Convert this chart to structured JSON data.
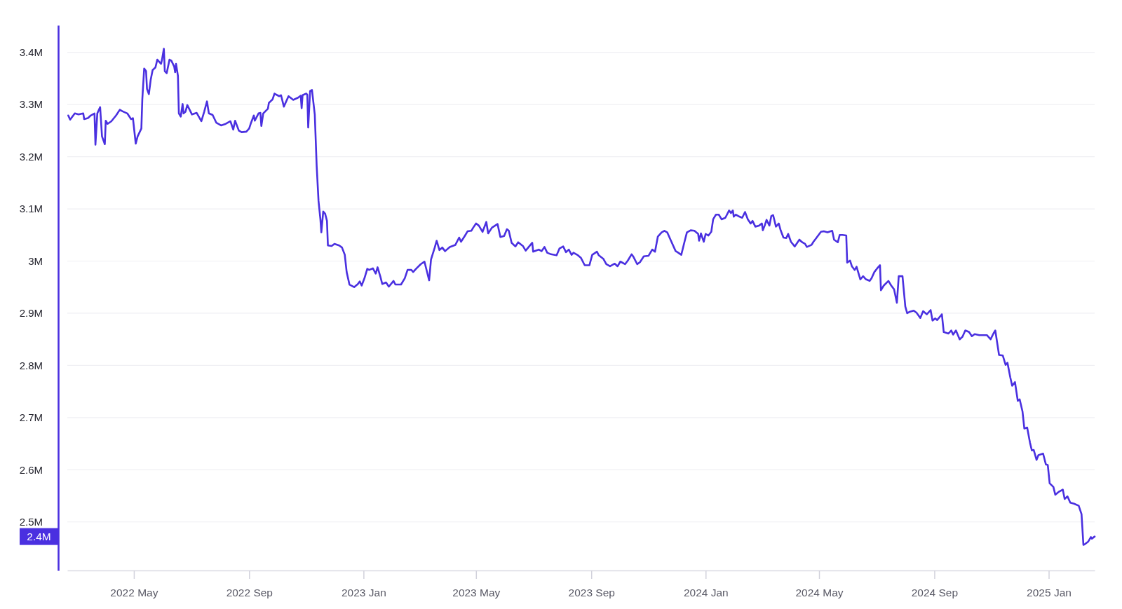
{
  "chart_data": {
    "type": "line",
    "x": [
      "2022-02-20",
      "2022-02-22",
      "2022-02-27",
      "2022-03-03",
      "2022-03-08",
      "2022-03-09",
      "2022-03-13",
      "2022-03-16",
      "2022-03-20",
      "2022-03-21",
      "2022-03-23",
      "2022-03-26",
      "2022-03-28",
      "2022-03-31",
      "2022-04-01",
      "2022-04-03",
      "2022-04-07",
      "2022-04-12",
      "2022-04-16",
      "2022-04-19",
      "2022-04-24",
      "2022-04-28",
      "2022-04-30",
      "2022-05-03",
      "2022-05-05",
      "2022-05-09",
      "2022-05-10",
      "2022-05-12",
      "2022-05-14",
      "2022-05-15",
      "2022-05-17",
      "2022-05-19",
      "2022-05-21",
      "2022-05-24",
      "2022-05-26",
      "2022-05-30",
      "2022-05-31",
      "2022-06-02",
      "2022-06-03",
      "2022-06-05",
      "2022-06-08",
      "2022-06-10",
      "2022-06-13",
      "2022-06-14",
      "2022-06-15",
      "2022-06-17",
      "2022-06-18",
      "2022-06-20",
      "2022-06-22",
      "2022-06-23",
      "2022-06-25",
      "2022-06-27",
      "2022-07-02",
      "2022-07-07",
      "2022-07-12",
      "2022-07-15",
      "2022-07-18",
      "2022-07-20",
      "2022-07-24",
      "2022-07-28",
      "2022-08-02",
      "2022-08-07",
      "2022-08-12",
      "2022-08-15",
      "2022-08-17",
      "2022-08-21",
      "2022-08-24",
      "2022-08-29",
      "2022-09-01",
      "2022-09-03",
      "2022-09-06",
      "2022-09-07",
      "2022-09-11",
      "2022-09-13",
      "2022-09-14",
      "2022-09-16",
      "2022-09-21",
      "2022-09-22",
      "2022-09-26",
      "2022-09-28",
      "2022-10-03",
      "2022-10-05",
      "2022-10-08",
      "2022-10-13",
      "2022-10-18",
      "2022-10-23",
      "2022-10-26",
      "2022-10-27",
      "2022-10-28",
      "2022-11-01",
      "2022-11-02",
      "2022-11-03",
      "2022-11-05",
      "2022-11-07",
      "2022-11-10",
      "2022-11-12",
      "2022-11-14",
      "2022-11-16",
      "2022-11-17",
      "2022-11-19",
      "2022-11-21",
      "2022-11-23",
      "2022-11-24",
      "2022-11-28",
      "2022-12-01",
      "2022-12-06",
      "2022-12-09",
      "2022-12-12",
      "2022-12-14",
      "2022-12-17",
      "2022-12-22",
      "2022-12-26",
      "2022-12-28",
      "2022-12-30",
      "2023-01-02",
      "2023-01-05",
      "2023-01-07",
      "2023-01-11",
      "2023-01-14",
      "2023-01-16",
      "2023-01-19",
      "2023-01-21",
      "2023-01-25",
      "2023-01-28",
      "2023-02-02",
      "2023-02-04",
      "2023-02-10",
      "2023-02-14",
      "2023-02-17",
      "2023-02-21",
      "2023-02-23",
      "2023-02-26",
      "2023-03-03",
      "2023-03-07",
      "2023-03-12",
      "2023-03-14",
      "2023-03-18",
      "2023-03-20",
      "2023-03-23",
      "2023-03-26",
      "2023-03-29",
      "2023-04-03",
      "2023-04-09",
      "2023-04-13",
      "2023-04-15",
      "2023-04-19",
      "2023-04-22",
      "2023-04-26",
      "2023-04-28",
      "2023-05-01",
      "2023-05-04",
      "2023-05-08",
      "2023-05-12",
      "2023-05-14",
      "2023-05-18",
      "2023-05-24",
      "2023-05-27",
      "2023-05-31",
      "2023-06-03",
      "2023-06-05",
      "2023-06-08",
      "2023-06-12",
      "2023-06-15",
      "2023-06-20",
      "2023-06-23",
      "2023-06-30",
      "2023-07-01",
      "2023-07-07",
      "2023-07-10",
      "2023-07-13",
      "2023-07-16",
      "2023-07-20",
      "2023-07-26",
      "2023-07-29",
      "2023-08-02",
      "2023-08-05",
      "2023-08-08",
      "2023-08-11",
      "2023-08-13",
      "2023-08-17",
      "2023-08-21",
      "2023-08-25",
      "2023-08-30",
      "2023-09-02",
      "2023-09-07",
      "2023-09-09",
      "2023-09-14",
      "2023-09-17",
      "2023-09-21",
      "2023-09-26",
      "2023-09-29",
      "2023-10-02",
      "2023-10-07",
      "2023-10-10",
      "2023-10-14",
      "2023-10-16",
      "2023-10-20",
      "2023-10-23",
      "2023-10-27",
      "2023-11-01",
      "2023-11-05",
      "2023-11-08",
      "2023-11-11",
      "2023-11-15",
      "2023-11-18",
      "2023-11-21",
      "2023-11-25",
      "2023-11-30",
      "2023-12-02",
      "2023-12-06",
      "2023-12-10",
      "2023-12-12",
      "2023-12-16",
      "2023-12-20",
      "2023-12-24",
      "2023-12-25",
      "2023-12-27",
      "2023-12-30",
      "2024-01-01",
      "2024-01-04",
      "2024-01-07",
      "2024-01-09",
      "2024-01-12",
      "2024-01-15",
      "2024-01-18",
      "2024-01-22",
      "2024-01-26",
      "2024-01-28",
      "2024-01-30",
      "2024-01-31",
      "2024-02-02",
      "2024-02-05",
      "2024-02-09",
      "2024-02-12",
      "2024-02-15",
      "2024-02-18",
      "2024-02-20",
      "2024-02-23",
      "2024-02-27",
      "2024-03-01",
      "2024-03-02",
      "2024-03-04",
      "2024-03-06",
      "2024-03-09",
      "2024-03-11",
      "2024-03-13",
      "2024-03-16",
      "2024-03-19",
      "2024-03-21",
      "2024-03-24",
      "2024-03-27",
      "2024-03-29",
      "2024-04-01",
      "2024-04-05",
      "2024-04-10",
      "2024-04-13",
      "2024-04-16",
      "2024-04-18",
      "2024-04-23",
      "2024-04-25",
      "2024-04-28",
      "2024-05-03",
      "2024-05-06",
      "2024-05-10",
      "2024-05-15",
      "2024-05-17",
      "2024-05-21",
      "2024-05-23",
      "2024-05-26",
      "2024-05-30",
      "2024-05-31",
      "2024-06-03",
      "2024-06-05",
      "2024-06-08",
      "2024-06-10",
      "2024-06-14",
      "2024-06-17",
      "2024-06-20",
      "2024-06-24",
      "2024-06-26",
      "2024-06-29",
      "2024-07-02",
      "2024-07-05",
      "2024-07-06",
      "2024-07-09",
      "2024-07-14",
      "2024-07-17",
      "2024-07-20",
      "2024-07-23",
      "2024-07-25",
      "2024-07-29",
      "2024-08-01",
      "2024-08-03",
      "2024-08-06",
      "2024-08-10",
      "2024-08-13",
      "2024-08-17",
      "2024-08-20",
      "2024-08-24",
      "2024-08-28",
      "2024-08-30",
      "2024-09-02",
      "2024-09-04",
      "2024-09-09",
      "2024-09-11",
      "2024-09-16",
      "2024-09-19",
      "2024-09-21",
      "2024-09-24",
      "2024-09-28",
      "2024-10-01",
      "2024-10-04",
      "2024-10-08",
      "2024-10-11",
      "2024-10-14",
      "2024-10-19",
      "2024-10-27",
      "2024-10-31",
      "2024-11-03",
      "2024-11-05",
      "2024-11-09",
      "2024-11-13",
      "2024-11-16",
      "2024-11-18",
      "2024-11-21",
      "2024-11-23",
      "2024-11-26",
      "2024-11-29",
      "2024-12-01",
      "2024-12-04",
      "2024-12-06",
      "2024-12-09",
      "2024-12-12",
      "2024-12-14",
      "2024-12-16",
      "2024-12-19",
      "2024-12-21",
      "2024-12-26",
      "2024-12-29",
      "2024-12-31",
      "2025-01-02",
      "2025-01-06",
      "2025-01-08",
      "2025-01-12",
      "2025-01-16",
      "2025-01-18",
      "2025-01-21",
      "2025-01-24",
      "2025-01-28",
      "2025-02-02",
      "2025-02-05",
      "2025-02-07",
      "2025-02-09",
      "2025-02-12",
      "2025-02-15",
      "2025-02-16",
      "2025-02-19"
    ],
    "series": [
      {
        "color": "#4a30e0",
        "values": [
          3279000,
          3271000,
          3283000,
          3281000,
          3283000,
          3272000,
          3274000,
          3279000,
          3283000,
          3223000,
          3283000,
          3295000,
          3239000,
          3224000,
          3269000,
          3263000,
          3268000,
          3279000,
          3290000,
          3287000,
          3283000,
          3272000,
          3274000,
          3225000,
          3239000,
          3254000,
          3310000,
          3369000,
          3364000,
          3330000,
          3320000,
          3348000,
          3366000,
          3371000,
          3386000,
          3378000,
          3386000,
          3407000,
          3364000,
          3360000,
          3386000,
          3384000,
          3373000,
          3362000,
          3378000,
          3355000,
          3283000,
          3277000,
          3301000,
          3283000,
          3286000,
          3299000,
          3281000,
          3284000,
          3268000,
          3286000,
          3306000,
          3283000,
          3280000,
          3265000,
          3260000,
          3263000,
          3268000,
          3252000,
          3269000,
          3250000,
          3247000,
          3248000,
          3254000,
          3265000,
          3279000,
          3269000,
          3283000,
          3284000,
          3259000,
          3283000,
          3292000,
          3303000,
          3310000,
          3321000,
          3316000,
          3318000,
          3296000,
          3316000,
          3309000,
          3313000,
          3317000,
          3293000,
          3318000,
          3321000,
          3319000,
          3256000,
          3326000,
          3328000,
          3281000,
          3183000,
          3115000,
          3080000,
          3055000,
          3095000,
          3091000,
          3077000,
          3030000,
          3029000,
          3033000,
          3030000,
          3026000,
          3012000,
          2979000,
          2955000,
          2950000,
          2956000,
          2961000,
          2953000,
          2967000,
          2985000,
          2983000,
          2986000,
          2976000,
          2988000,
          2970000,
          2956000,
          2959000,
          2951000,
          2962000,
          2955000,
          2955000,
          2967000,
          2983000,
          2983000,
          2979000,
          2985000,
          2994000,
          2999000,
          2963000,
          3003000,
          3026000,
          3039000,
          3021000,
          3026000,
          3019000,
          3027000,
          3031000,
          3045000,
          3037000,
          3048000,
          3057000,
          3058000,
          3064000,
          3072000,
          3068000,
          3056000,
          3075000,
          3053000,
          3064000,
          3071000,
          3046000,
          3048000,
          3061000,
          3058000,
          3035000,
          3028000,
          3036000,
          3029000,
          3020000,
          3035000,
          3018000,
          3022000,
          3019000,
          3027000,
          3016000,
          3013000,
          3011000,
          3024000,
          3028000,
          3017000,
          3022000,
          3012000,
          3016000,
          3012000,
          3006000,
          2992000,
          2992000,
          3012000,
          3018000,
          3011000,
          3004000,
          2994000,
          2990000,
          2995000,
          2990000,
          2999000,
          2994000,
          3001000,
          3013000,
          3008000,
          2994000,
          2998000,
          3009000,
          3010000,
          3022000,
          3018000,
          3047000,
          3055000,
          3058000,
          3055000,
          3039000,
          3019000,
          3017000,
          3012000,
          3041000,
          3055000,
          3059000,
          3058000,
          3052000,
          3039000,
          3053000,
          3037000,
          3052000,
          3049000,
          3056000,
          3080000,
          3089000,
          3089000,
          3080000,
          3083000,
          3097000,
          3092000,
          3097000,
          3085000,
          3089000,
          3086000,
          3083000,
          3094000,
          3080000,
          3072000,
          3077000,
          3066000,
          3068000,
          3072000,
          3059000,
          3068000,
          3079000,
          3068000,
          3086000,
          3088000,
          3066000,
          3072000,
          3059000,
          3045000,
          3044000,
          3052000,
          3037000,
          3028000,
          3041000,
          3036000,
          3033000,
          3027000,
          3031000,
          3037000,
          3044000,
          3056000,
          3057000,
          3055000,
          3058000,
          3041000,
          3036000,
          3050000,
          3050000,
          3049000,
          2997000,
          3001000,
          2990000,
          2983000,
          2989000,
          2965000,
          2971000,
          2965000,
          2962000,
          2967000,
          2979000,
          2986000,
          2992000,
          2944000,
          2953000,
          2962000,
          2953000,
          2946000,
          2920000,
          2971000,
          2971000,
          2913000,
          2900000,
          2903000,
          2905000,
          2901000,
          2891000,
          2904000,
          2898000,
          2906000,
          2886000,
          2890000,
          2887000,
          2898000,
          2864000,
          2861000,
          2867000,
          2859000,
          2867000,
          2850000,
          2855000,
          2867000,
          2864000,
          2856000,
          2860000,
          2858000,
          2858000,
          2850000,
          2861000,
          2867000,
          2820000,
          2819000,
          2801000,
          2805000,
          2777000,
          2761000,
          2768000,
          2732000,
          2735000,
          2712000,
          2679000,
          2681000,
          2652000,
          2637000,
          2638000,
          2619000,
          2628000,
          2631000,
          2610000,
          2609000,
          2574000,
          2567000,
          2552000,
          2558000,
          2562000,
          2544000,
          2549000,
          2537000,
          2535000,
          2531000,
          2515000,
          2456000,
          2458000,
          2462000,
          2471000,
          2468000,
          2472000
        ]
      }
    ],
    "xlim": [
      "2022-02-19",
      "2025-02-19"
    ],
    "xticks": [
      {
        "value": "2022-05-01",
        "label": "2022 May"
      },
      {
        "value": "2022-09-01",
        "label": "2022 Sep"
      },
      {
        "value": "2023-01-01",
        "label": "2023 Jan"
      },
      {
        "value": "2023-05-01",
        "label": "2023 May"
      },
      {
        "value": "2023-09-01",
        "label": "2023 Sep"
      },
      {
        "value": "2024-01-01",
        "label": "2024 Jan"
      },
      {
        "value": "2024-05-01",
        "label": "2024 May"
      },
      {
        "value": "2024-09-01",
        "label": "2024 Sep"
      },
      {
        "value": "2025-01-01",
        "label": "2025 Jan"
      }
    ],
    "ylim": [
      2407000,
      3452000
    ],
    "yticks": [
      {
        "value": 2500000,
        "label": "2.5M"
      },
      {
        "value": 2600000,
        "label": "2.6M"
      },
      {
        "value": 2700000,
        "label": "2.7M"
      },
      {
        "value": 2800000,
        "label": "2.8M"
      },
      {
        "value": 2900000,
        "label": "2.9M"
      },
      {
        "value": 3000000,
        "label": "3M"
      },
      {
        "value": 3100000,
        "label": "3.1M"
      },
      {
        "value": 3200000,
        "label": "3.2M"
      },
      {
        "value": 3300000,
        "label": "3.3M"
      },
      {
        "value": 3400000,
        "label": "3.4M"
      }
    ],
    "grid": "y",
    "annotations": [
      "2.4M"
    ]
  }
}
